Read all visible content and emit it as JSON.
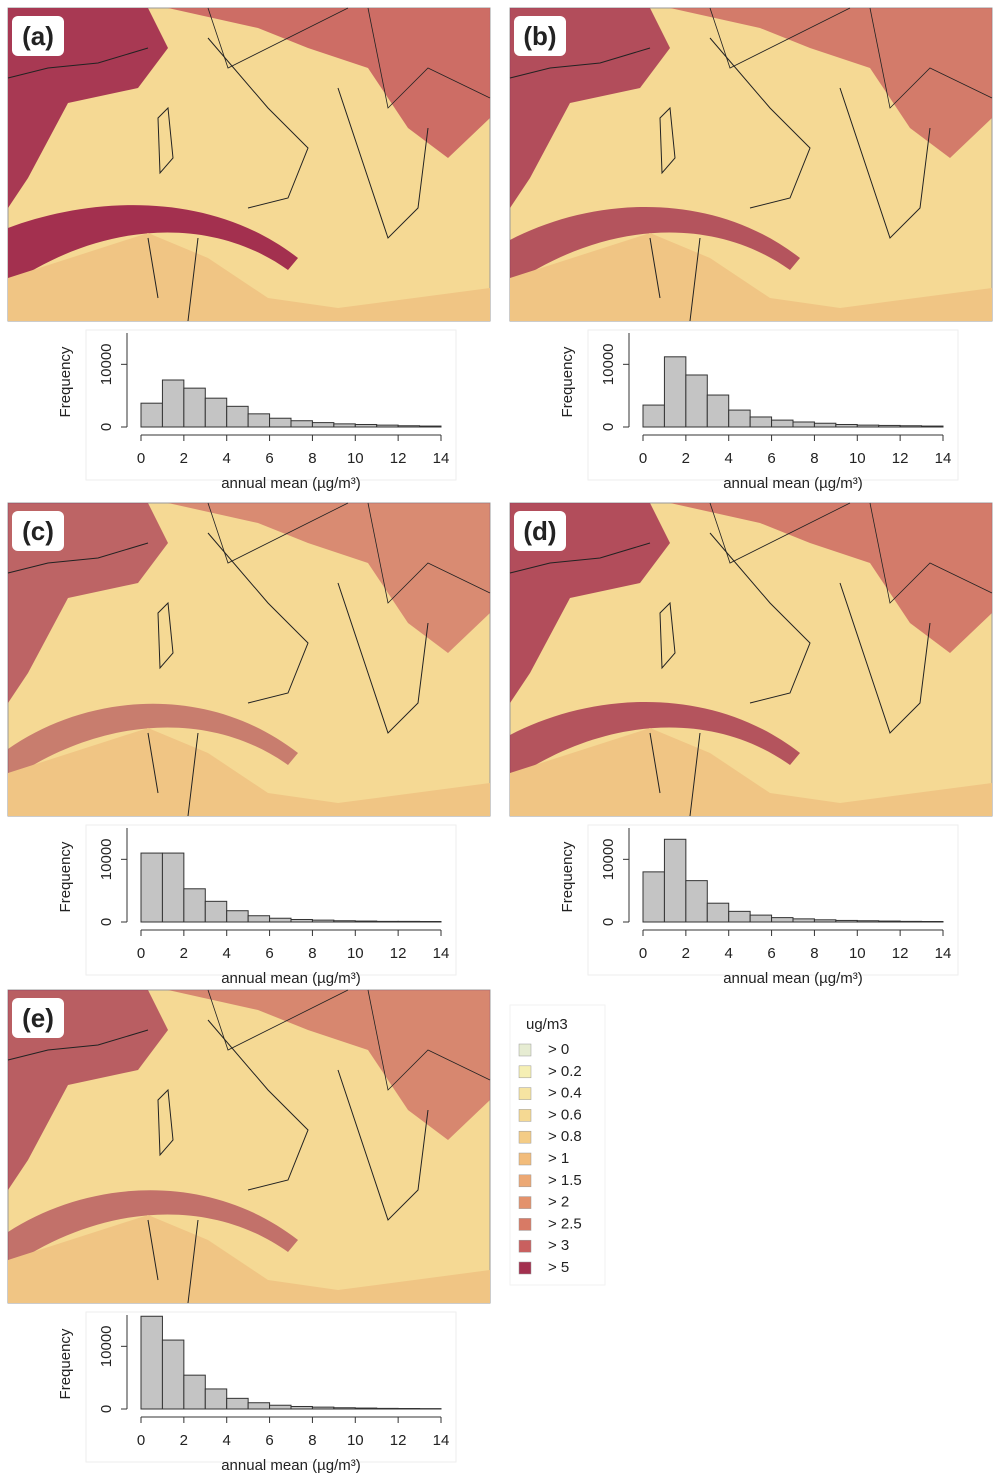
{
  "chart_data": [
    {
      "type": "histogram",
      "panel_label": "(a)",
      "x_label": "annual mean (µg/m³)",
      "y_label": "Frequency",
      "bins": [
        0,
        1,
        2,
        3,
        4,
        5,
        6,
        7,
        8,
        9,
        10,
        11,
        12,
        13,
        14
      ],
      "values": [
        3800,
        7500,
        6200,
        4600,
        3300,
        2100,
        1400,
        1000,
        700,
        500,
        400,
        300,
        200,
        150
      ],
      "xlim": [
        0,
        14
      ],
      "xticks": [
        0,
        2,
        4,
        6,
        8,
        10,
        12,
        14
      ],
      "ylim": [
        0,
        15000
      ],
      "yticks": [
        0,
        10000
      ]
    },
    {
      "type": "histogram",
      "panel_label": "(b)",
      "x_label": "annual mean (µg/m³)",
      "y_label": "Frequency",
      "bins": [
        0,
        1,
        2,
        3,
        4,
        5,
        6,
        7,
        8,
        9,
        10,
        11,
        12,
        13,
        14
      ],
      "values": [
        3500,
        11200,
        8300,
        5100,
        2700,
        1600,
        1100,
        800,
        600,
        400,
        300,
        250,
        200,
        150
      ],
      "xlim": [
        0,
        14
      ],
      "xticks": [
        0,
        2,
        4,
        6,
        8,
        10,
        12,
        14
      ],
      "ylim": [
        0,
        15000
      ],
      "yticks": [
        0,
        10000
      ]
    },
    {
      "type": "histogram",
      "panel_label": "(c)",
      "x_label": "annual mean (µg/m³)",
      "y_label": "Frequency",
      "bins": [
        0,
        1,
        2,
        3,
        4,
        5,
        6,
        7,
        8,
        9,
        10,
        11,
        12,
        13,
        14
      ],
      "values": [
        11000,
        11000,
        5300,
        3300,
        1800,
        1000,
        600,
        400,
        300,
        200,
        150,
        100,
        100,
        80
      ],
      "xlim": [
        0,
        14
      ],
      "xticks": [
        0,
        2,
        4,
        6,
        8,
        10,
        12,
        14
      ],
      "ylim": [
        0,
        15000
      ],
      "yticks": [
        0,
        10000
      ]
    },
    {
      "type": "histogram",
      "panel_label": "(d)",
      "x_label": "annual mean (µg/m³)",
      "y_label": "Frequency",
      "bins": [
        0,
        1,
        2,
        3,
        4,
        5,
        6,
        7,
        8,
        9,
        10,
        11,
        12,
        13,
        14
      ],
      "values": [
        8000,
        13200,
        6600,
        3000,
        1700,
        1100,
        700,
        500,
        350,
        250,
        200,
        150,
        100,
        80
      ],
      "xlim": [
        0,
        14
      ],
      "xticks": [
        0,
        2,
        4,
        6,
        8,
        10,
        12,
        14
      ],
      "ylim": [
        0,
        15000
      ],
      "yticks": [
        0,
        10000
      ]
    },
    {
      "type": "histogram",
      "panel_label": "(e)",
      "x_label": "annual mean (µg/m³)",
      "y_label": "Frequency",
      "bins": [
        0,
        1,
        2,
        3,
        4,
        5,
        6,
        7,
        8,
        9,
        10,
        11,
        12,
        13,
        14
      ],
      "values": [
        14800,
        11000,
        5400,
        3200,
        1700,
        1000,
        600,
        400,
        300,
        200,
        150,
        100,
        80,
        60
      ],
      "xlim": [
        0,
        14
      ],
      "xticks": [
        0,
        2,
        4,
        6,
        8,
        10,
        12,
        14
      ],
      "ylim": [
        0,
        15000
      ],
      "yticks": [
        0,
        10000
      ]
    }
  ],
  "legend": {
    "title": "ug/m3",
    "items": [
      {
        "label": "> 0",
        "color": "#e6ecd2"
      },
      {
        "label": "> 0.2",
        "color": "#f5efb4"
      },
      {
        "label": "> 0.4",
        "color": "#f6e4a2"
      },
      {
        "label": "> 0.6",
        "color": "#f5d993"
      },
      {
        "label": "> 0.8",
        "color": "#f4cc86"
      },
      {
        "label": "> 1",
        "color": "#f2bc7b"
      },
      {
        "label": "> 1.5",
        "color": "#eca874"
      },
      {
        "label": "> 2",
        "color": "#e3926c"
      },
      {
        "label": "> 2.5",
        "color": "#d87a65"
      },
      {
        "label": "> 3",
        "color": "#c9605f"
      },
      {
        "label": "> 5",
        "color": "#a3304f"
      }
    ]
  }
}
